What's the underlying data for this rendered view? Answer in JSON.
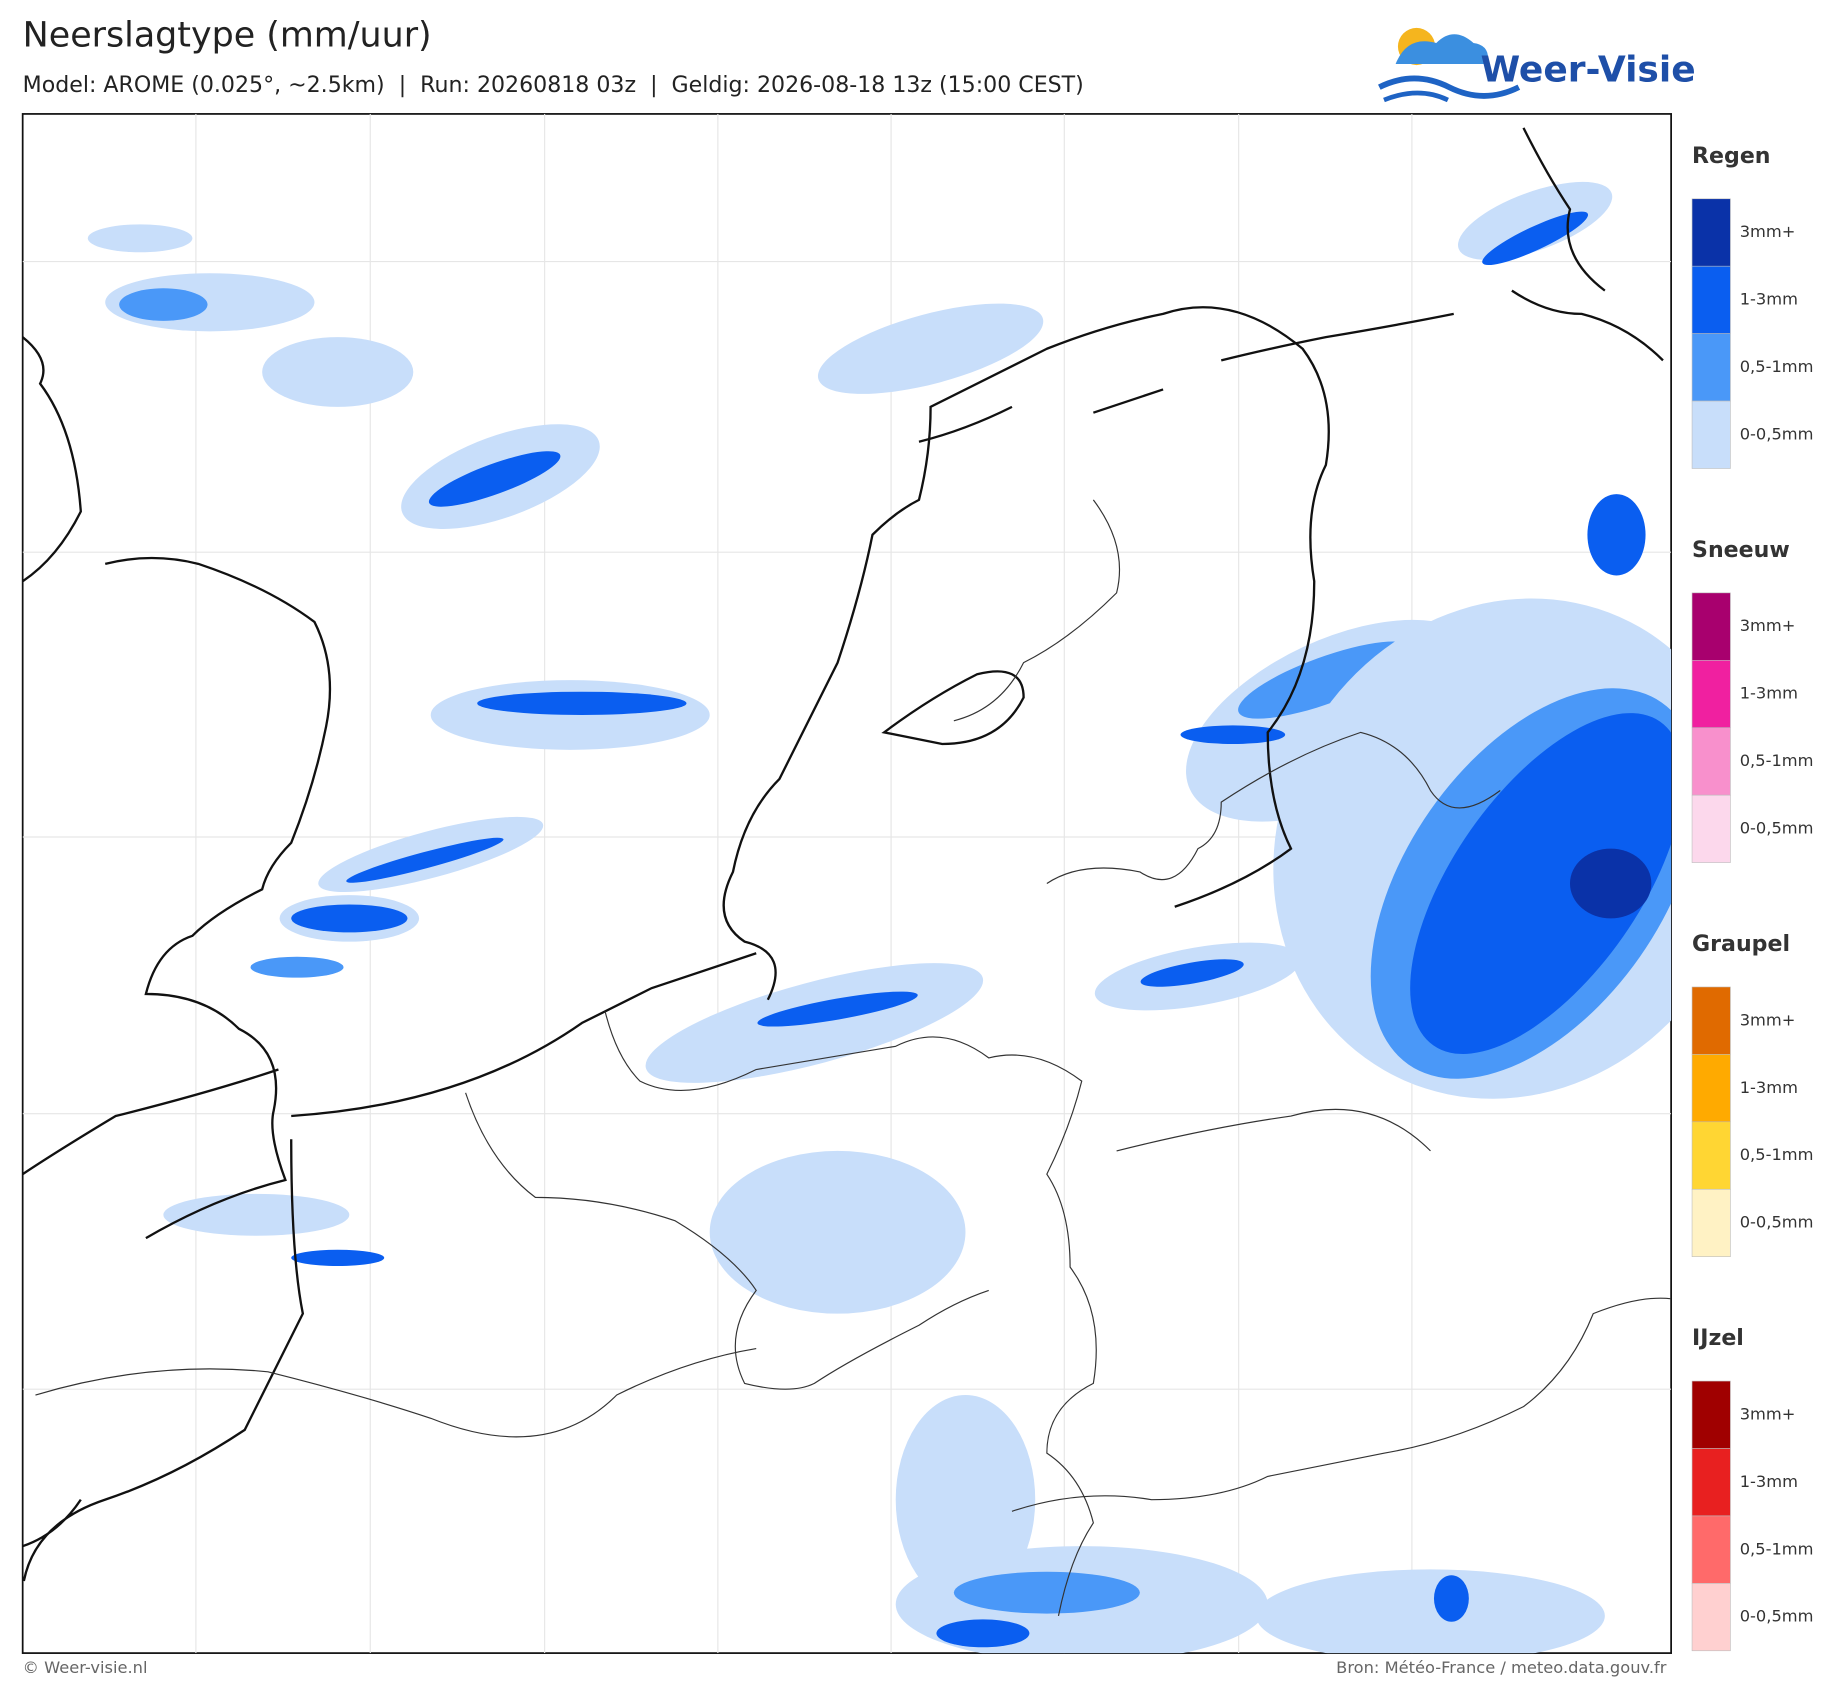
{
  "header": {
    "title": "Neerslagtype (mm/uur)",
    "subtitle": "Model: AROME (0.025°, ~2.5km)  |  Run: 20260818 03z  |  Geldig: 2026-08-18 13z (15:00 CEST)",
    "logo": "Weer-Visie"
  },
  "legend": [
    {
      "title": "Regen",
      "items": [
        {
          "label": "3mm+",
          "color": "#0a32a8"
        },
        {
          "label": "1-3mm",
          "color": "#0a5ef0"
        },
        {
          "label": "0,5-1mm",
          "color": "#4a98f8"
        },
        {
          "label": "0-0,5mm",
          "color": "#c8defa"
        }
      ]
    },
    {
      "title": "Sneeuw",
      "items": [
        {
          "label": "3mm+",
          "color": "#a8006e"
        },
        {
          "label": "1-3mm",
          "color": "#f020a0"
        },
        {
          "label": "0,5-1mm",
          "color": "#f890cc"
        },
        {
          "label": "0-0,5mm",
          "color": "#fcd8ec"
        }
      ]
    },
    {
      "title": "Graupel",
      "items": [
        {
          "label": "3mm+",
          "color": "#e06a00"
        },
        {
          "label": "1-3mm",
          "color": "#ffaa00"
        },
        {
          "label": "0,5-1mm",
          "color": "#ffd633"
        },
        {
          "label": "0-0,5mm",
          "color": "#fff2c4"
        }
      ]
    },
    {
      "title": "IJzel",
      "items": [
        {
          "label": "3mm+",
          "color": "#a00000"
        },
        {
          "label": "1-3mm",
          "color": "#e82020"
        },
        {
          "label": "0,5-1mm",
          "color": "#ff6a6a"
        },
        {
          "label": "0-0,5mm",
          "color": "#ffd0d0"
        }
      ]
    }
  ],
  "footer": {
    "left": "© Weer-visie.nl",
    "right": "Bron: Météo-France / meteo.data.gouv.fr"
  }
}
